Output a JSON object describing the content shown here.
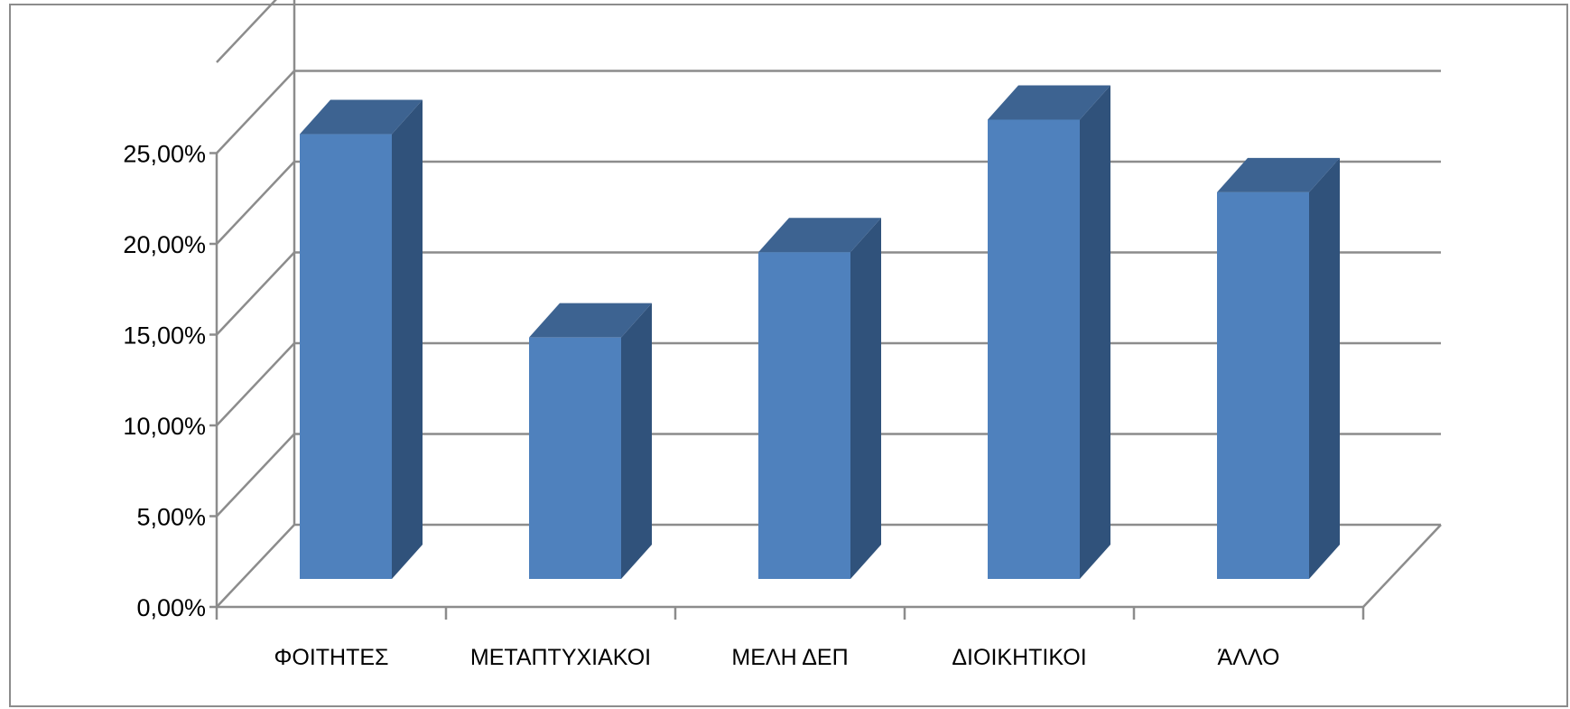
{
  "chart_data": {
    "type": "bar",
    "style": "3d-column",
    "title": "",
    "xlabel": "",
    "ylabel": "",
    "categories": [
      "ΦΟΙΤΗΤΕΣ",
      "ΜΕΤΑΠΤΥΧΙΑΚΟΙ",
      "ΜΕΛΗ ΔΕΠ",
      "ΔΙΟΙΚΗΤΙΚΟΙ",
      "ΆΛΛΟ"
    ],
    "values": [
      24.5,
      13.3,
      18.0,
      25.3,
      21.3
    ],
    "ylim": [
      0,
      25
    ],
    "yticks": [
      0,
      5,
      10,
      15,
      20,
      25
    ],
    "ytick_labels": [
      "0,00%",
      "5,00%",
      "10,00%",
      "15,00%",
      "20,00%",
      "25,00%"
    ],
    "grid": true,
    "legend": "none",
    "colors": {
      "bar_front": "#4f81bd",
      "bar_top": "#3d6391",
      "bar_side": "#30527b",
      "grid": "#8c8c8c"
    }
  }
}
